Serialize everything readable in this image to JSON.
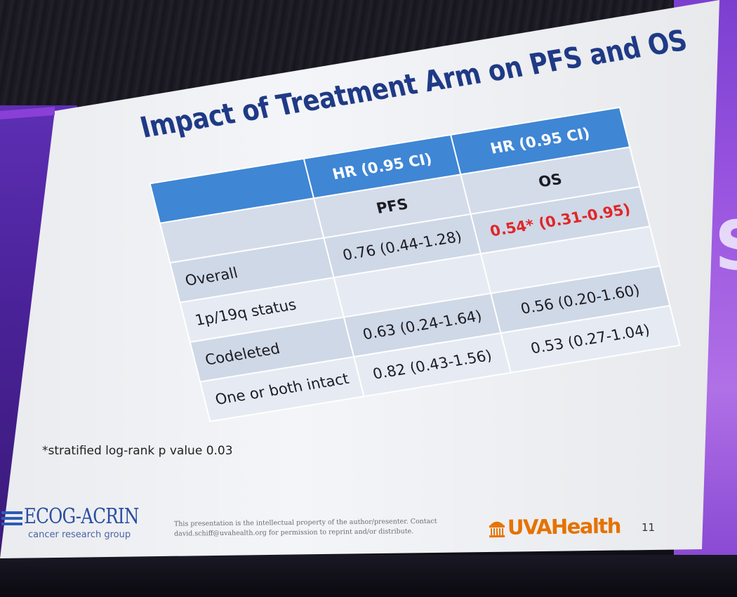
{
  "slide": {
    "title": "Impact of Treatment Arm on PFS and OS",
    "table": {
      "header_top": [
        "",
        "HR (0.95 CI)",
        "HR (0.95 CI)"
      ],
      "header_sub": [
        "",
        "PFS",
        "OS"
      ],
      "rows": [
        {
          "label": "Overall",
          "pfs": "0.76 (0.44-1.28)",
          "os": "0.54* (0.31-0.95)"
        },
        {
          "label": "1p/19q status",
          "pfs": "",
          "os": ""
        },
        {
          "label": "Codeleted",
          "pfs": "0.63 (0.24-1.64)",
          "os": "0.56 (0.20-1.60)"
        },
        {
          "label": "One or both intact",
          "pfs": "0.82 (0.43-1.56)",
          "os": "0.53 (0.27-1.04)"
        }
      ]
    },
    "footnote": "*stratified log-rank p value 0.03",
    "footer": {
      "ecog_name": "ECOG-ACRIN",
      "ecog_sub": "cancer research group",
      "disclaimer_line1": "This presentation is the intellectual property of the author/presenter. Contact",
      "disclaimer_line2": "david.schiff@uvahealth.org for permission to reprint and/or distribute.",
      "uva_name": "UVAHealth",
      "slide_number": "11"
    }
  },
  "colors": {
    "title": "#1f3a86",
    "header_blue": "#3f86d4",
    "highlight_red": "#e0262a",
    "uva_orange": "#e57200",
    "ecog_blue": "#2a4fa0",
    "stage_purple": "#7b3fd0"
  }
}
